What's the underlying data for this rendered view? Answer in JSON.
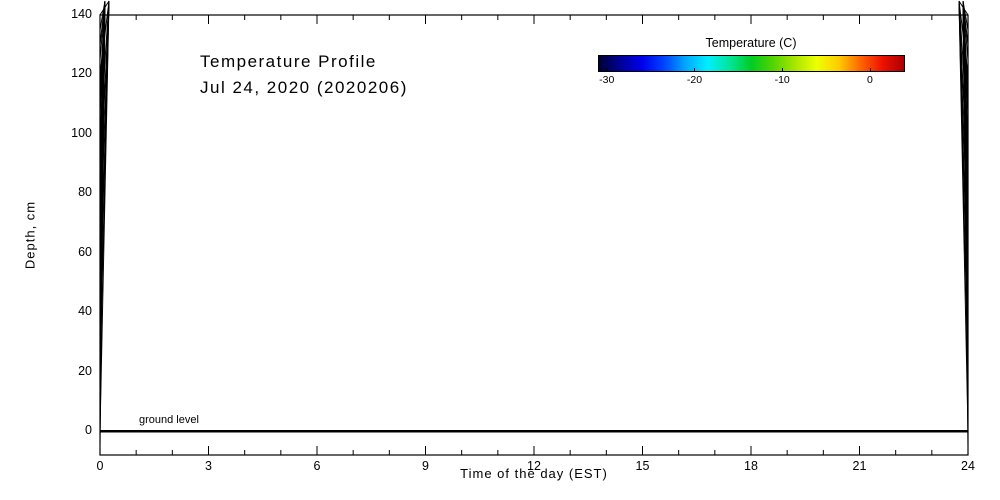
{
  "chart_data": {
    "type": "heatmap",
    "title": "Temperature Profile",
    "subtitle": "Jul 24, 2020 (2020206)",
    "xlabel": "Time of the day (EST)",
    "ylabel": "Depth, cm",
    "xlim": [
      0,
      24
    ],
    "ylim": [
      -8,
      140
    ],
    "x_ticks": [
      0,
      3,
      6,
      9,
      12,
      15,
      18,
      21,
      24
    ],
    "x_minor_step": 1,
    "y_ticks": [
      0,
      20,
      40,
      60,
      80,
      100,
      120,
      140
    ],
    "y_minor_step": 5,
    "grid": false,
    "series": [],
    "plot_area_empty": true,
    "ground_line_y": 0,
    "annotations": [
      {
        "text": "ground level",
        "x": 1.1,
        "y": 2
      }
    ],
    "axis_color": "#000000",
    "background_color": "#ffffff",
    "colorbar": {
      "title": "Temperature (C)",
      "ticks": [
        -30,
        -20,
        -10,
        0
      ],
      "range": [
        -31,
        4
      ],
      "position": "top-right",
      "colors": [
        "#000033",
        "#000099",
        "#0000ee",
        "#0044ff",
        "#00aaff",
        "#00eeff",
        "#00e699",
        "#00cc22",
        "#55d400",
        "#aae600",
        "#eeff00",
        "#ffcc00",
        "#ff6600",
        "#ee1100",
        "#aa0000"
      ]
    }
  }
}
